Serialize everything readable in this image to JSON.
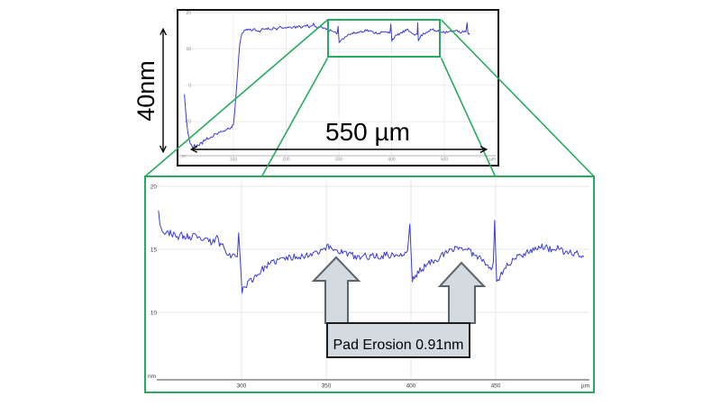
{
  "annotations": {
    "height_label": "40nm",
    "width_label": "550 µm",
    "erosion_label": "Pad Erosion 0.91nm"
  },
  "colors": {
    "trace": "#3d3dd2",
    "zoom_green": "#27ab5f",
    "arrow_fill": "#d3dbe1",
    "arrow_stroke": "#5a646c",
    "chart_border": "#141414"
  },
  "zoom_link": {
    "region_um": [
      278,
      493
    ]
  },
  "chart_data": [
    {
      "name": "full-profile",
      "type": "line",
      "xlabel": "µm",
      "ylabel": "nm",
      "x_ticks": [
        100,
        200,
        300,
        400,
        500
      ],
      "y_ticks": [
        20,
        10,
        0,
        -10
      ],
      "xlim": [
        0,
        557
      ],
      "ylim": [
        -19,
        20.5
      ],
      "noise_nm": 0.35,
      "series": [
        {
          "name": "surface profile",
          "color": "#3d3dd2",
          "points": [
            [
              7,
              -2.5
            ],
            [
              9,
              -6.5
            ],
            [
              11,
              -10
            ],
            [
              14,
              -13.5
            ],
            [
              17,
              -15.5
            ],
            [
              20,
              -16.3
            ],
            [
              23,
              -17.4
            ],
            [
              26,
              -16.6
            ],
            [
              29,
              -17.1
            ],
            [
              32,
              -16.2
            ],
            [
              35,
              -16.5
            ],
            [
              38,
              -15.7
            ],
            [
              41,
              -16
            ],
            [
              44,
              -15.1
            ],
            [
              47,
              -15.4
            ],
            [
              50,
              -14.6
            ],
            [
              53,
              -14.9
            ],
            [
              56,
              -14.2
            ],
            [
              59,
              -14.6
            ],
            [
              62,
              -13.8
            ],
            [
              66,
              -13.3
            ],
            [
              70,
              -13.6
            ],
            [
              74,
              -12.8
            ],
            [
              78,
              -13
            ],
            [
              82,
              -12.3
            ],
            [
              86,
              -12.5
            ],
            [
              90,
              -11.8
            ],
            [
              94,
              -12
            ],
            [
              97,
              -11.4
            ],
            [
              100,
              -10.6
            ],
            [
              102,
              -8
            ],
            [
              104,
              -4.5
            ],
            [
              106,
              -0.5
            ],
            [
              108,
              3.5
            ],
            [
              110,
              7.5
            ],
            [
              112,
              10.8
            ],
            [
              114,
              13
            ],
            [
              116,
              14.2
            ],
            [
              119,
              14.9
            ],
            [
              123,
              15.2
            ],
            [
              128,
              15.4
            ],
            [
              134,
              15.2
            ],
            [
              140,
              15.5
            ],
            [
              146,
              14.9
            ],
            [
              150,
              14.4
            ],
            [
              153,
              15.3
            ],
            [
              158,
              15.5
            ],
            [
              164,
              15.7
            ],
            [
              170,
              15.4
            ],
            [
              176,
              15.8
            ],
            [
              182,
              15.5
            ],
            [
              188,
              15.9
            ],
            [
              194,
              15.6
            ],
            [
              200,
              16
            ],
            [
              206,
              15.7
            ],
            [
              212,
              16.1
            ],
            [
              218,
              15.8
            ],
            [
              224,
              16.2
            ],
            [
              230,
              16
            ],
            [
              236,
              16.4
            ],
            [
              240,
              16.5
            ],
            [
              244,
              16.1
            ],
            [
              248,
              16.4
            ],
            [
              252,
              16.9
            ],
            [
              254,
              15.9
            ],
            [
              258,
              16.1
            ],
            [
              262,
              15.8
            ],
            [
              266,
              16
            ],
            [
              270,
              15.9
            ],
            [
              274,
              15.7
            ],
            [
              278,
              15.4
            ],
            [
              282,
              15.1
            ],
            [
              286,
              14.9
            ],
            [
              290,
              14.5
            ],
            [
              294,
              14.3
            ],
            [
              297,
              14.5
            ],
            [
              298.5,
              16.2
            ],
            [
              300.5,
              11.7
            ],
            [
              303,
              12.3
            ],
            [
              307,
              12.8
            ],
            [
              312,
              13.4
            ],
            [
              318,
              13.9
            ],
            [
              324,
              14.2
            ],
            [
              330,
              14.4
            ],
            [
              336,
              14.5
            ],
            [
              342,
              14.8
            ],
            [
              348,
              15
            ],
            [
              352,
              15.2
            ],
            [
              356,
              15
            ],
            [
              362,
              14.7
            ],
            [
              368,
              14.5
            ],
            [
              374,
              14.4
            ],
            [
              380,
              14.5
            ],
            [
              386,
              14.6
            ],
            [
              392,
              14.5
            ],
            [
              397,
              14.6
            ],
            [
              398.5,
              16.8
            ],
            [
              400.5,
              12.4
            ],
            [
              404,
              13
            ],
            [
              409,
              13.6
            ],
            [
              414,
              14.1
            ],
            [
              420,
              14.5
            ],
            [
              426,
              15
            ],
            [
              429,
              15.2
            ],
            [
              433,
              14.9
            ],
            [
              438,
              14.6
            ],
            [
              442,
              14.3
            ],
            [
              446,
              13.8
            ],
            [
              448.5,
              14
            ],
            [
              449.5,
              17.2
            ],
            [
              450.8,
              12.2
            ],
            [
              454,
              13.2
            ],
            [
              458,
              13.9
            ],
            [
              462,
              14.3
            ],
            [
              467,
              14.7
            ],
            [
              472,
              15.1
            ],
            [
              477,
              15.3
            ],
            [
              482,
              15
            ],
            [
              487,
              14.9
            ],
            [
              492,
              14.7
            ],
            [
              497,
              14.8
            ],
            [
              502,
              14.6
            ],
            [
              508,
              14.9
            ],
            [
              514,
              14.7
            ],
            [
              520,
              15
            ],
            [
              526,
              14.8
            ],
            [
              532,
              14.6
            ],
            [
              537,
              14.9
            ],
            [
              541,
              14.4
            ],
            [
              543,
              17.5
            ],
            [
              545,
              13.9
            ],
            [
              548,
              14.3
            ]
          ]
        }
      ]
    },
    {
      "name": "zoomed-profile",
      "type": "line",
      "xlabel": "µm",
      "ylabel": "nm",
      "x_ticks": [
        300,
        350,
        400,
        450
      ],
      "y_ticks": [
        20,
        15,
        10
      ],
      "xlim": [
        250,
        505
      ],
      "ylim": [
        5,
        20.5
      ],
      "noise_nm": 0.27,
      "series": [
        {
          "name": "surface profile (zoom)",
          "color": "#3d3dd2",
          "points": [
            [
              251,
              18.3
            ],
            [
              251.8,
              17.2
            ],
            [
              252.6,
              16.6
            ],
            [
              254,
              16.4
            ],
            [
              256,
              16.2
            ],
            [
              258,
              16.4
            ],
            [
              260,
              16.1
            ],
            [
              262,
              15.9
            ],
            [
              264,
              16.2
            ],
            [
              266,
              15.9
            ],
            [
              268,
              16.1
            ],
            [
              270,
              15.8
            ],
            [
              272,
              16.1
            ],
            [
              274,
              15.8
            ],
            [
              276,
              15.9
            ],
            [
              278,
              15.6
            ],
            [
              280,
              15.8
            ],
            [
              282,
              15.5
            ],
            [
              284,
              15.7
            ],
            [
              285.5,
              15.9
            ],
            [
              287,
              15.5
            ],
            [
              289,
              15.3
            ],
            [
              291,
              14.9
            ],
            [
              293,
              14.6
            ],
            [
              295,
              14.4
            ],
            [
              296.5,
              14.6
            ],
            [
              297.5,
              14.4
            ],
            [
              298.3,
              16.3
            ],
            [
              300.3,
              11.7
            ],
            [
              301.5,
              12
            ],
            [
              303,
              12.2
            ],
            [
              305,
              12.5
            ],
            [
              307,
              12.7
            ],
            [
              309,
              13
            ],
            [
              311,
              13.2
            ],
            [
              313,
              13.5
            ],
            [
              315,
              13.7
            ],
            [
              317,
              13.8
            ],
            [
              319,
              14
            ],
            [
              321,
              14.1
            ],
            [
              323,
              14.2
            ],
            [
              325,
              14.3
            ],
            [
              328,
              14.3
            ],
            [
              331,
              14.4
            ],
            [
              334,
              14.5
            ],
            [
              337,
              14.4
            ],
            [
              340,
              14.6
            ],
            [
              343,
              14.8
            ],
            [
              346,
              14.9
            ],
            [
              349,
              15.1
            ],
            [
              351,
              15.2
            ],
            [
              353,
              15.1
            ],
            [
              355,
              15
            ],
            [
              357,
              14.9
            ],
            [
              359,
              14.8
            ],
            [
              361,
              14.7
            ],
            [
              364,
              14.6
            ],
            [
              367,
              14.4
            ],
            [
              370,
              14.3
            ],
            [
              373,
              14.5
            ],
            [
              376,
              14.4
            ],
            [
              379,
              14.5
            ],
            [
              382,
              14.4
            ],
            [
              385,
              14.6
            ],
            [
              388,
              14.5
            ],
            [
              391,
              14.6
            ],
            [
              394,
              14.5
            ],
            [
              396.5,
              14.6
            ],
            [
              398,
              14.9
            ],
            [
              399.3,
              17
            ],
            [
              400.8,
              12.5
            ],
            [
              402,
              12.8
            ],
            [
              404,
              13.1
            ],
            [
              406,
              13.4
            ],
            [
              408,
              13.6
            ],
            [
              410,
              13.8
            ],
            [
              412,
              14
            ],
            [
              414,
              14.2
            ],
            [
              416,
              14.3
            ],
            [
              418,
              14.5
            ],
            [
              420,
              14.6
            ],
            [
              422,
              14.8
            ],
            [
              424,
              14.9
            ],
            [
              426,
              15.1
            ],
            [
              428,
              15.2
            ],
            [
              430,
              15.1
            ],
            [
              432,
              15
            ],
            [
              434,
              14.9
            ],
            [
              436,
              14.7
            ],
            [
              438,
              14.6
            ],
            [
              440,
              14.4
            ],
            [
              442,
              14.2
            ],
            [
              444,
              14
            ],
            [
              446,
              13.7
            ],
            [
              447.5,
              13.5
            ],
            [
              448.6,
              14
            ],
            [
              449.4,
              17.3
            ],
            [
              450.6,
              12.2
            ],
            [
              452,
              12.7
            ],
            [
              454,
              13.2
            ],
            [
              456,
              13.6
            ],
            [
              458,
              13.9
            ],
            [
              460,
              14.1
            ],
            [
              462,
              14.3
            ],
            [
              464,
              14.5
            ],
            [
              466,
              14.6
            ],
            [
              468,
              14.8
            ],
            [
              470,
              14.9
            ],
            [
              472,
              15
            ],
            [
              474,
              15.1
            ],
            [
              476,
              15.2
            ],
            [
              478,
              15.2
            ],
            [
              480,
              15.1
            ],
            [
              482,
              15
            ],
            [
              484,
              15
            ],
            [
              486,
              15.1
            ],
            [
              488,
              14.9
            ],
            [
              490,
              14.8
            ],
            [
              492,
              14.7
            ],
            [
              494,
              14.8
            ],
            [
              496,
              14.6
            ],
            [
              498,
              14.7
            ],
            [
              500,
              14.5
            ],
            [
              502,
              14.4
            ]
          ]
        }
      ]
    }
  ]
}
